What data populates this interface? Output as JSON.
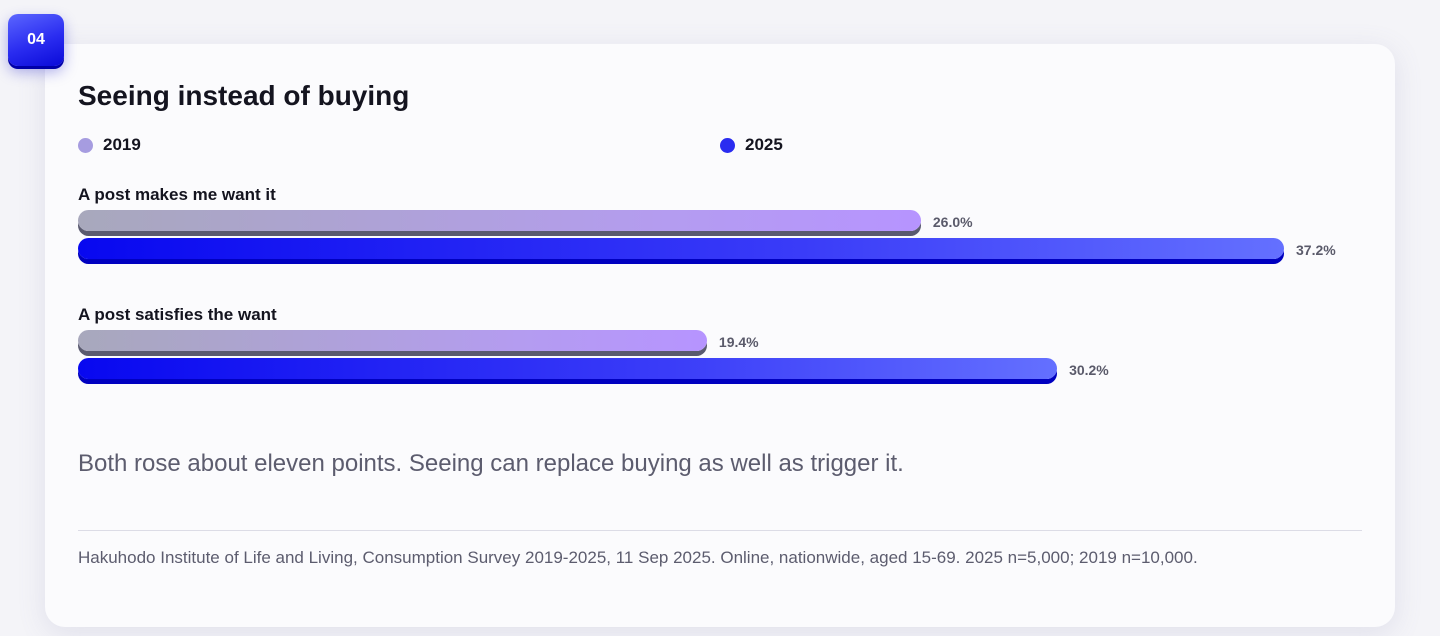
{
  "badge": "04",
  "title": "Seeing instead of buying",
  "legend": [
    {
      "label": "2019",
      "color": "#a69ce0"
    },
    {
      "label": "2025",
      "color": "#2a2cf0"
    }
  ],
  "chart_data": {
    "type": "bar",
    "orientation": "horizontal",
    "title": "Seeing instead of buying",
    "categories": [
      "A post makes me want it",
      "A post satisfies the want"
    ],
    "series": [
      {
        "name": "2019",
        "values": [
          26.0,
          19.4
        ],
        "labels": [
          "26.0%",
          "19.4%"
        ],
        "color": "#b694ff"
      },
      {
        "name": "2025",
        "values": [
          37.2,
          30.2
        ],
        "labels": [
          "37.2%",
          "30.2%"
        ],
        "color": "#2a2cf0"
      }
    ],
    "xlim": [
      0,
      37.2
    ],
    "unit": "%",
    "grid": false,
    "legend_position": "top"
  },
  "insight": "Both rose about eleven points. Seeing can replace buying as well as trigger it.",
  "source": "Hakuhodo Institute of Life and Living, Consumption Survey 2019-2025, 11 Sep 2025. Online, nationwide, aged 15-69. 2025 n=5,000; 2019 n=10,000."
}
